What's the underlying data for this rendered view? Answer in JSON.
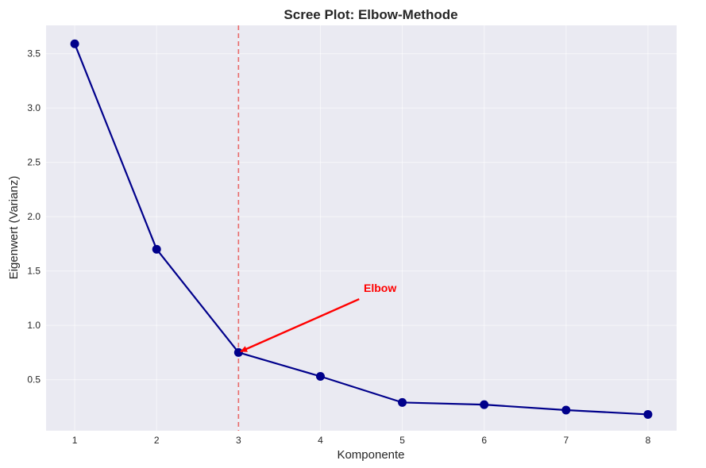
{
  "chart_data": {
    "type": "line",
    "title": "Scree Plot: Elbow-Methode",
    "xlabel": "Komponente",
    "ylabel": "Eigenwert (Varianz)",
    "x": [
      1,
      2,
      3,
      4,
      5,
      6,
      7,
      8
    ],
    "series": [
      {
        "values": [
          3.59,
          1.7,
          0.75,
          0.53,
          0.29,
          0.27,
          0.22,
          0.18
        ],
        "color": "#00008b"
      }
    ],
    "xlim": [
      0.65,
      8.35
    ],
    "ylim": [
      0.03,
      3.76
    ],
    "xticks": [
      1,
      2,
      3,
      4,
      5,
      6,
      7,
      8
    ],
    "yticks": [
      0.5,
      1.0,
      1.5,
      2.0,
      2.5,
      3.0,
      3.5
    ],
    "ytick_labels": [
      "0.5",
      "1.0",
      "1.5",
      "2.0",
      "2.5",
      "3.0",
      "3.5"
    ],
    "vline": {
      "x": 3,
      "color": "#e86a6a",
      "style": "dashed"
    },
    "annotation": {
      "text": "Elbow",
      "target_x": 3,
      "target_y": 0.75,
      "text_x": 4.5,
      "text_y": 1.25,
      "color": "#ff0000"
    },
    "grid": true,
    "background": "#eaeaf2"
  }
}
